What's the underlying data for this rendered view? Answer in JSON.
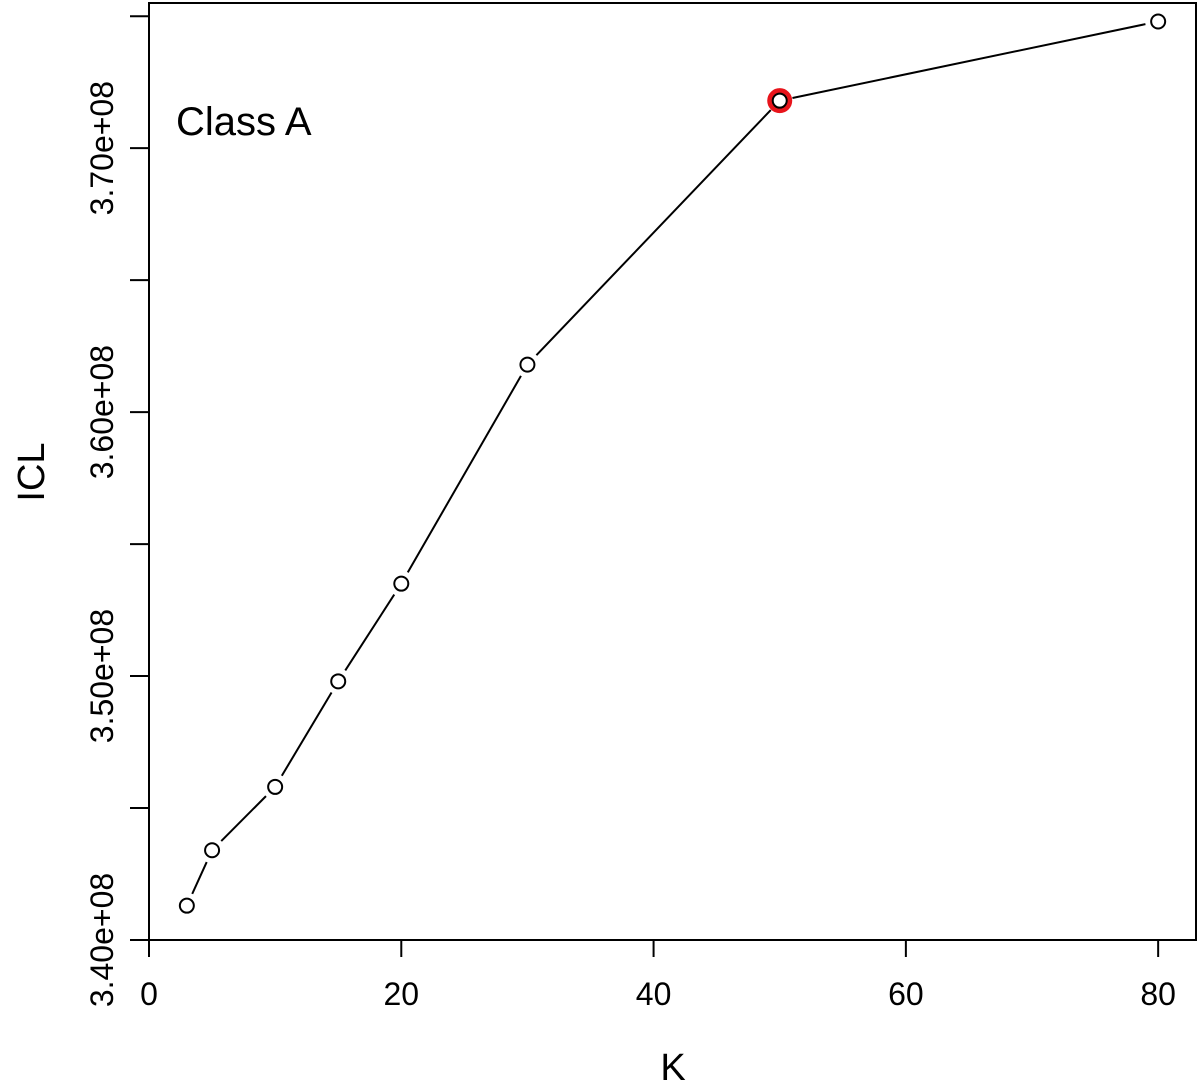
{
  "chart_data": {
    "type": "line",
    "xlabel": "K",
    "ylabel": "ICL",
    "annotation": "Class A",
    "xlim": [
      0,
      83
    ],
    "ylim": [
      340000000,
      375500000
    ],
    "x_ticks": [
      0,
      20,
      40,
      60,
      80
    ],
    "x_tick_labels": [
      "0",
      "20",
      "40",
      "60",
      "80"
    ],
    "y_ticks": [
      340000000,
      345000000,
      350000000,
      355000000,
      360000000,
      365000000,
      370000000,
      375000000
    ],
    "y_tick_labels": [
      "3.40e+08",
      "",
      "3.50e+08",
      "",
      "3.60e+08",
      "",
      "3.70e+08",
      ""
    ],
    "grid": false,
    "series": [
      {
        "x": [
          3,
          5,
          10,
          15,
          20,
          30,
          50,
          80
        ],
        "y": [
          341300000,
          343400000,
          345800000,
          349800000,
          353500000,
          361800000,
          371800000,
          374800000
        ]
      }
    ],
    "highlight": {
      "x": 50,
      "y": 371800000,
      "color": "#e8141b"
    },
    "colors": {
      "line": "#000000",
      "marker_fill": "#ffffff",
      "highlight": "#e8141b"
    }
  }
}
